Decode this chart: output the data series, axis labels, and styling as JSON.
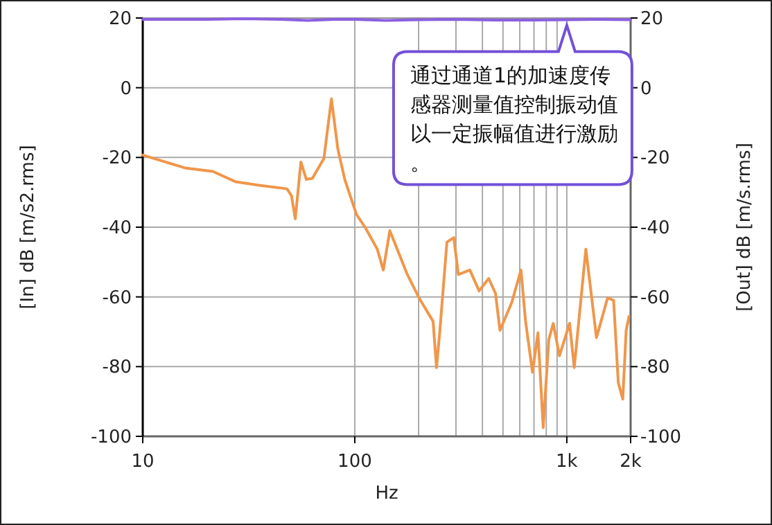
{
  "chart_data": {
    "type": "line",
    "xlabel": "Hz",
    "ylabel": "[In] dB [m/s2.rms]",
    "y2label": "[Out] dB [m/s.rms]",
    "log": "x",
    "grid": true,
    "xlim": [
      10,
      2000
    ],
    "ylim": [
      -100,
      20
    ],
    "y2lim": [
      -100,
      20
    ],
    "xticks": [
      {
        "value": 10,
        "label": "10"
      },
      {
        "value": 100,
        "label": "100"
      },
      {
        "value": 200,
        "label": null
      },
      {
        "value": 300,
        "label": null
      },
      {
        "value": 400,
        "label": null
      },
      {
        "value": 500,
        "label": null
      },
      {
        "value": 600,
        "label": null
      },
      {
        "value": 700,
        "label": null
      },
      {
        "value": 800,
        "label": null
      },
      {
        "value": 900,
        "label": null
      },
      {
        "value": 1000,
        "label": "1k"
      },
      {
        "value": 2000,
        "label": "2k"
      }
    ],
    "yticks": [
      20,
      0,
      -20,
      -40,
      -60,
      -80,
      -100
    ],
    "y2ticks": [
      20,
      0,
      -20,
      -40,
      -60,
      -80,
      -100
    ],
    "series": [
      {
        "color": "#8c5fe0",
        "x": [
          10,
          20,
          30,
          45,
          60,
          80,
          100,
          140,
          200,
          300,
          450,
          700,
          1000,
          1400,
          2000
        ],
        "values": [
          19.6,
          19.6,
          19.8,
          19.6,
          19.3,
          19.6,
          19.6,
          19.3,
          19.5,
          19.6,
          19.4,
          19.4,
          19.5,
          19.6,
          19.5
        ]
      },
      {
        "color": "#f0964a",
        "x": [
          10,
          15.8,
          21.4,
          27.5,
          35.4,
          47.9,
          50.3,
          52.4,
          55.7,
          59.1,
          63.1,
          71.5,
          77.6,
          83.2,
          89.7,
          101.8,
          112.5,
          127.7,
          136.3,
          146.3,
          177,
          201,
          234,
          243,
          252,
          272,
          293,
          308,
          349,
          386,
          428,
          461,
          484,
          550,
          608,
          639,
          689,
          731,
          774,
          822,
          863,
          923,
          1031,
          1084,
          1230,
          1380,
          1557,
          1663,
          1749,
          1837,
          1905,
          1965
        ],
        "values": [
          -19.3,
          -23,
          -24,
          -27,
          -28,
          -29,
          -31,
          -37.6,
          -21.3,
          -26.3,
          -26,
          -20.3,
          -3.2,
          -17.6,
          -26.3,
          -36.3,
          -40.3,
          -46.3,
          -52.3,
          -41,
          -53.6,
          -60.3,
          -67,
          -80.3,
          -69.6,
          -44.3,
          -43,
          -53.6,
          -52.3,
          -58.3,
          -54.7,
          -59,
          -69.6,
          -61.6,
          -52.3,
          -67,
          -81.6,
          -70.3,
          -97.5,
          -72.3,
          -67.6,
          -76.9,
          -67.6,
          -80.3,
          -46.3,
          -71.7,
          -60.3,
          -61,
          -84.6,
          -89.3,
          -69.6,
          -65.6
        ]
      }
    ],
    "annotations": [
      {
        "text": "通过通道1的加速度传感器测量值控制振动值以一定振幅值进行激励。",
        "x": 1000,
        "y": 19.5
      }
    ]
  }
}
